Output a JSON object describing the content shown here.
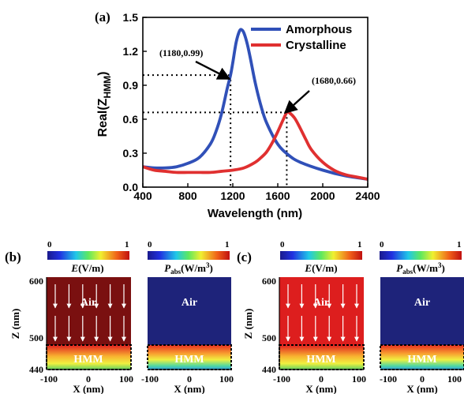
{
  "chart_data": [
    {
      "panel_label": "(a)",
      "type": "line",
      "xlabel": "Wavelength (nm)",
      "ylabel": "Real(Z",
      "ylabel_sub": "HMM",
      "ylabel_close": ")",
      "xlim": [
        400,
        2400
      ],
      "ylim": [
        0.0,
        1.5
      ],
      "xticks": [
        400,
        800,
        1200,
        1600,
        2000,
        2400
      ],
      "yticks": [
        "0.0",
        "0.3",
        "0.6",
        "0.9",
        "1.2",
        "1.5"
      ],
      "legend_position": "top-right",
      "series": [
        {
          "name": "Amorphous",
          "color": "#3050b8",
          "x": [
            400,
            500,
            600,
            700,
            800,
            900,
            1000,
            1050,
            1100,
            1150,
            1180,
            1200,
            1230,
            1260,
            1280,
            1300,
            1330,
            1360,
            1400,
            1450,
            1500,
            1600,
            1700,
            1800,
            2000,
            2200,
            2400
          ],
          "y": [
            0.18,
            0.17,
            0.17,
            0.18,
            0.21,
            0.26,
            0.38,
            0.49,
            0.65,
            0.87,
            0.99,
            1.1,
            1.28,
            1.38,
            1.39,
            1.36,
            1.26,
            1.12,
            0.92,
            0.72,
            0.57,
            0.38,
            0.28,
            0.22,
            0.15,
            0.1,
            0.07
          ]
        },
        {
          "name": "Crystalline",
          "color": "#e03030",
          "x": [
            400,
            500,
            600,
            700,
            800,
            900,
            1000,
            1100,
            1200,
            1300,
            1400,
            1450,
            1500,
            1550,
            1600,
            1650,
            1680,
            1700,
            1750,
            1800,
            1850,
            1900,
            2000,
            2100,
            2200,
            2300,
            2400
          ],
          "y": [
            0.18,
            0.15,
            0.14,
            0.13,
            0.13,
            0.13,
            0.13,
            0.14,
            0.15,
            0.17,
            0.22,
            0.26,
            0.31,
            0.39,
            0.49,
            0.6,
            0.66,
            0.66,
            0.61,
            0.52,
            0.42,
            0.33,
            0.22,
            0.15,
            0.11,
            0.09,
            0.07
          ]
        }
      ],
      "annotations": [
        {
          "text": "(1180,0.99)",
          "x": 1180,
          "y": 0.99
        },
        {
          "text": "(1680,0.66)",
          "x": 1680,
          "y": 0.66
        }
      ]
    },
    {
      "panel_label": "(b)",
      "type": "heatmap",
      "maps": [
        {
          "quantity": "E",
          "unit": "(V/m)",
          "colorbar_min": "0",
          "colorbar_max": "1",
          "region_top": "Air",
          "region_bottom": "HMM",
          "field_color": "#7a1010",
          "xlabel": "X (nm)",
          "ylabel": "Z (nm)",
          "xticks": [
            "-100",
            "0",
            "100"
          ],
          "yticks": [
            "600",
            "500",
            "440"
          ]
        },
        {
          "quantity": "P",
          "quantity_sub": "abs",
          "unit": "(W/m",
          "unit_sup": "3",
          "unit_close": ")",
          "colorbar_min": "0",
          "colorbar_max": "1",
          "region_top": "Air",
          "region_bottom": "HMM",
          "field_color": "#1e237a",
          "xlabel": "X (nm)",
          "xticks": [
            "-100",
            "0",
            "100"
          ]
        }
      ]
    },
    {
      "panel_label": "(c)",
      "type": "heatmap",
      "maps": [
        {
          "quantity": "E",
          "unit": "(V/m)",
          "colorbar_min": "0",
          "colorbar_max": "1",
          "region_top": "Air",
          "region_bottom": "HMM",
          "field_color": "#dd1e1e",
          "xlabel": "X (nm)",
          "ylabel": "Z (nm)",
          "xticks": [
            "-100",
            "0",
            "100"
          ],
          "yticks": [
            "600",
            "500",
            "440"
          ]
        },
        {
          "quantity": "P",
          "quantity_sub": "abs",
          "unit": "(W/m",
          "unit_sup": "3",
          "unit_close": ")",
          "colorbar_min": "0",
          "colorbar_max": "1",
          "region_top": "Air",
          "region_bottom": "HMM",
          "field_color": "#1e237a",
          "xlabel": "X (nm)",
          "xticks": [
            "-100",
            "0",
            "100"
          ]
        }
      ]
    }
  ]
}
